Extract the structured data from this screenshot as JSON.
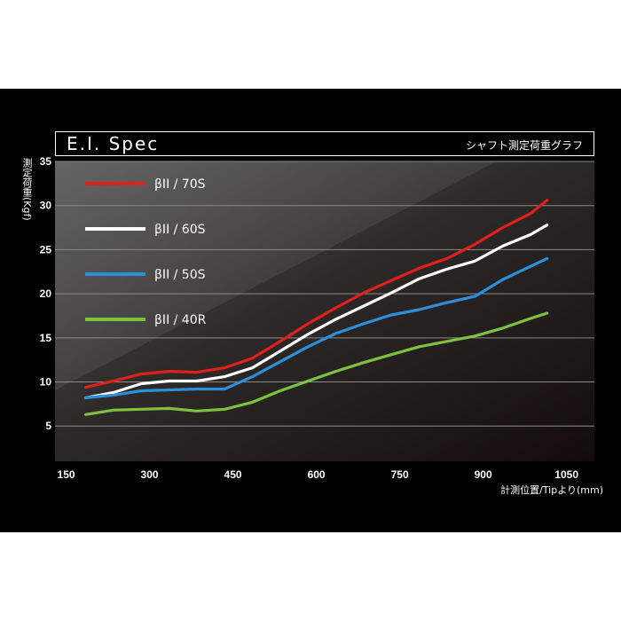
{
  "header": {
    "title": "E.I. Spec",
    "subtitle": "シャフト測定荷重グラフ"
  },
  "colors": {
    "background": "#000000",
    "plot_top": "#555555",
    "grid": "#8a8a8a"
  },
  "chart_data": {
    "type": "line",
    "title": "E.I. Spec",
    "subtitle": "シャフト測定荷重グラフ",
    "xlabel": "計測位置/Tipより(mm)",
    "ylabel": "測定荷重(Kgf)",
    "xlim": [
      130,
      1100
    ],
    "ylim": [
      1,
      35
    ],
    "xticks": [
      150,
      300,
      450,
      600,
      750,
      900,
      1050
    ],
    "yticks": [
      5,
      10,
      15,
      20,
      25,
      30,
      35
    ],
    "grid": true,
    "legend_position": "top-left",
    "x": [
      185,
      235,
      285,
      335,
      385,
      435,
      485,
      535,
      585,
      635,
      685,
      735,
      785,
      835,
      885,
      935,
      985,
      1015
    ],
    "series": [
      {
        "name": "βII / 70S",
        "color": "#e0201c",
        "values": [
          9.4,
          10.1,
          10.9,
          11.2,
          11.1,
          11.6,
          12.7,
          14.6,
          16.6,
          18.4,
          20.1,
          21.5,
          22.9,
          24.0,
          25.6,
          27.5,
          29.1,
          30.6
        ]
      },
      {
        "name": "βII / 60S",
        "color": "#ffffff",
        "values": [
          8.2,
          8.8,
          9.8,
          10.1,
          10.1,
          10.6,
          11.6,
          13.5,
          15.4,
          17.1,
          18.6,
          20.1,
          21.7,
          22.8,
          23.7,
          25.4,
          26.7,
          27.8
        ]
      },
      {
        "name": "βII / 50S",
        "color": "#2d8fd8",
        "values": [
          8.2,
          8.5,
          9.0,
          9.1,
          9.2,
          9.2,
          10.6,
          12.3,
          14.0,
          15.5,
          16.6,
          17.6,
          18.2,
          19.0,
          19.7,
          21.6,
          23.1,
          24.0
        ]
      },
      {
        "name": "βII / 40R",
        "color": "#7dc13c",
        "values": [
          6.3,
          6.8,
          6.9,
          7.0,
          6.7,
          6.9,
          7.7,
          9.0,
          10.1,
          11.2,
          12.2,
          13.1,
          14.0,
          14.6,
          15.2,
          16.1,
          17.2,
          17.8
        ]
      }
    ]
  }
}
